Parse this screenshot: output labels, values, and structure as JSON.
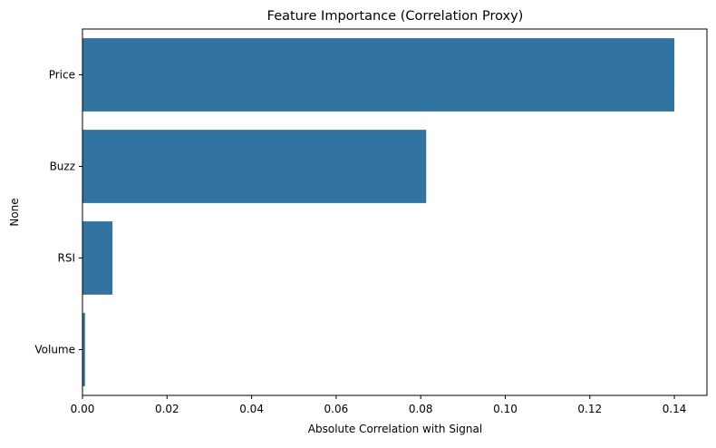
{
  "chart_data": {
    "type": "bar",
    "orientation": "horizontal",
    "title": "Feature Importance (Correlation Proxy)",
    "xlabel": "Absolute Correlation with Signal",
    "ylabel": "None",
    "categories": [
      "Price",
      "Buzz",
      "RSI",
      "Volume"
    ],
    "values": [
      0.14,
      0.0813,
      0.0071,
      0.0006
    ],
    "xlim": [
      0,
      0.1477
    ],
    "xticks": [
      0.0,
      0.02,
      0.04,
      0.06,
      0.08,
      0.1,
      0.12,
      0.14
    ],
    "xtick_labels": [
      "0.00",
      "0.02",
      "0.04",
      "0.06",
      "0.08",
      "0.10",
      "0.12",
      "0.14"
    ],
    "bar_color": "#3274a1",
    "grid": false,
    "legend": "none"
  }
}
